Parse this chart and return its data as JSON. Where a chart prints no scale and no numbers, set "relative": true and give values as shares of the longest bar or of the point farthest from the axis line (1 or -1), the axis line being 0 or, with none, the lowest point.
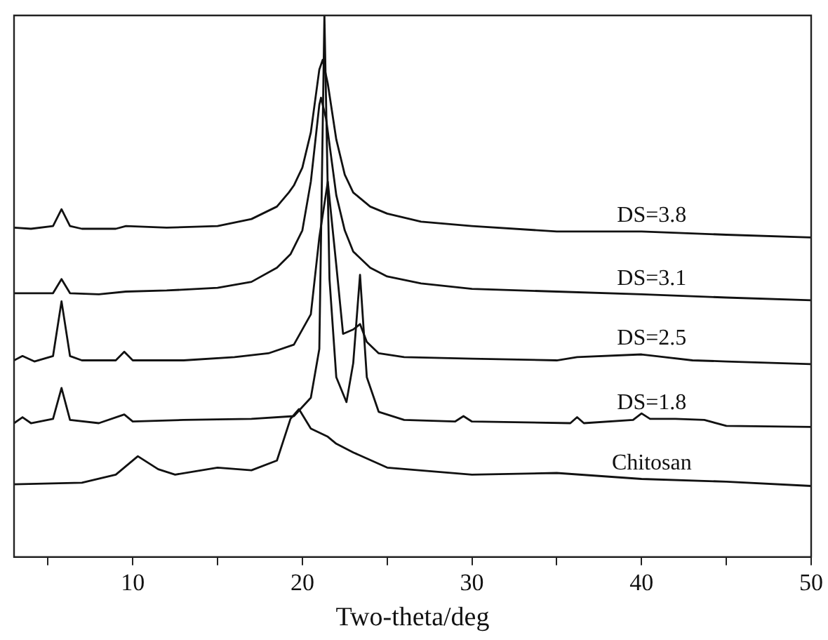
{
  "chart_data": {
    "type": "line",
    "relative": true,
    "xlabel": "Two-theta/deg",
    "xlim": [
      3,
      50
    ],
    "xticks": [
      {
        "value": 5,
        "label": null
      },
      10,
      {
        "value": 15,
        "label": null
      },
      20,
      {
        "value": 25,
        "label": null
      },
      30,
      {
        "value": 35,
        "label": null
      },
      40,
      {
        "value": 45,
        "label": null
      },
      50
    ],
    "legend": false,
    "marker": "none",
    "line_style": "solid",
    "grid": false,
    "series": [
      {
        "name": "DS=3.8",
        "color": "#111111",
        "x": [
          3,
          4,
          5.3,
          5.8,
          6.3,
          7,
          9,
          9.6,
          12,
          15,
          17,
          18.5,
          19.2,
          19.5,
          20,
          20.5,
          21,
          21.2,
          21.5,
          22,
          22.5,
          23,
          24,
          25,
          27,
          30,
          35,
          40,
          45,
          50
        ],
        "values": [
          0.608,
          0.606,
          0.611,
          0.642,
          0.611,
          0.606,
          0.606,
          0.611,
          0.608,
          0.611,
          0.624,
          0.647,
          0.673,
          0.686,
          0.719,
          0.784,
          0.9,
          0.918,
          0.874,
          0.771,
          0.706,
          0.673,
          0.647,
          0.634,
          0.619,
          0.611,
          0.601,
          0.601,
          0.595,
          0.59
        ]
      },
      {
        "name": "DS=3.1",
        "color": "#111111",
        "x": [
          3,
          5.3,
          5.8,
          6.3,
          8,
          9.6,
          12,
          15,
          17,
          18.5,
          19.3,
          20,
          20.5,
          21,
          21.1,
          21.4,
          22,
          22.5,
          23,
          24,
          25,
          27,
          30,
          35,
          40,
          45,
          50
        ],
        "values": [
          0.487,
          0.487,
          0.513,
          0.487,
          0.485,
          0.49,
          0.492,
          0.497,
          0.508,
          0.534,
          0.559,
          0.603,
          0.693,
          0.835,
          0.848,
          0.809,
          0.668,
          0.603,
          0.564,
          0.534,
          0.518,
          0.505,
          0.495,
          0.49,
          0.485,
          0.479,
          0.474
        ]
      },
      {
        "name": "DS=2.5",
        "color": "#111111",
        "x": [
          3,
          3.5,
          4.2,
          5.3,
          5.8,
          6.3,
          7,
          9,
          9.5,
          10,
          13,
          16,
          18,
          19.5,
          20.5,
          21,
          21.5,
          22,
          22.4,
          23,
          23.4,
          23.8,
          24.5,
          26,
          30,
          35,
          36.2,
          40,
          43,
          45,
          50
        ],
        "values": [
          0.363,
          0.371,
          0.361,
          0.371,
          0.472,
          0.371,
          0.363,
          0.363,
          0.379,
          0.363,
          0.363,
          0.369,
          0.376,
          0.392,
          0.448,
          0.59,
          0.693,
          0.539,
          0.412,
          0.42,
          0.43,
          0.397,
          0.376,
          0.369,
          0.366,
          0.363,
          0.369,
          0.374,
          0.363,
          0.361,
          0.356
        ]
      },
      {
        "name": "DS=1.8",
        "color": "#111111",
        "x": [
          3,
          3.5,
          4,
          5.3,
          5.8,
          6.3,
          8,
          9.5,
          10,
          13,
          17,
          19.5,
          20.5,
          21,
          21.3,
          21.6,
          22,
          22.6,
          23,
          23.4,
          23.8,
          24.5,
          26,
          29,
          29.5,
          30,
          35.8,
          36.2,
          36.6,
          39.5,
          40,
          40.5,
          42,
          43.7,
          45,
          50
        ],
        "values": [
          0.247,
          0.258,
          0.247,
          0.255,
          0.312,
          0.253,
          0.247,
          0.263,
          0.25,
          0.253,
          0.255,
          0.26,
          0.294,
          0.384,
          1,
          0.513,
          0.332,
          0.286,
          0.358,
          0.521,
          0.332,
          0.268,
          0.253,
          0.25,
          0.26,
          0.25,
          0.247,
          0.258,
          0.247,
          0.253,
          0.265,
          0.255,
          0.255,
          0.253,
          0.242,
          0.24
        ]
      },
      {
        "name": "Chitosan",
        "color": "#111111",
        "x": [
          3,
          7,
          9,
          10.3,
          11.5,
          12.5,
          15,
          17,
          18.5,
          19.3,
          19.8,
          20.5,
          21.5,
          22,
          23,
          25,
          28,
          30,
          35,
          40,
          45,
          50
        ],
        "values": [
          0.134,
          0.137,
          0.152,
          0.186,
          0.162,
          0.152,
          0.165,
          0.16,
          0.178,
          0.255,
          0.273,
          0.237,
          0.222,
          0.209,
          0.193,
          0.165,
          0.157,
          0.152,
          0.155,
          0.144,
          0.139,
          0.131
        ]
      }
    ]
  }
}
